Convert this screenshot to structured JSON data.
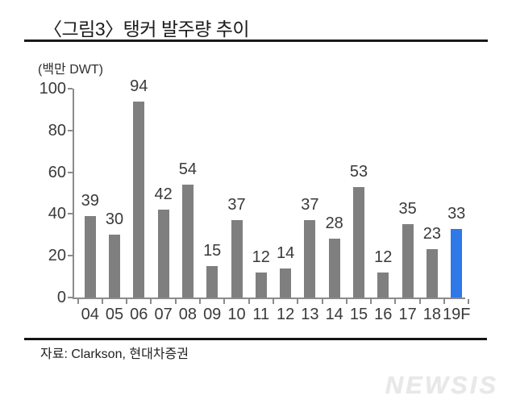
{
  "figure": {
    "title": "〈그림3〉탱커 발주량 추이",
    "unit_label": "(백만 DWT)",
    "source": "자료: Clarkson, 현대차증권",
    "watermark": "NEWSIS"
  },
  "chart_data": {
    "type": "bar",
    "title": "〈그림3〉탱커 발주량 추이",
    "ylabel": "(백만 DWT)",
    "xlabel": "",
    "categories": [
      "04",
      "05",
      "06",
      "07",
      "08",
      "09",
      "10",
      "11",
      "12",
      "13",
      "14",
      "15",
      "16",
      "17",
      "18",
      "19F"
    ],
    "values": [
      39,
      30,
      94,
      42,
      54,
      15,
      37,
      12,
      14,
      37,
      28,
      53,
      12,
      35,
      23,
      33
    ],
    "ylim": [
      0,
      100
    ],
    "yticks": [
      0,
      20,
      40,
      60,
      80,
      100
    ],
    "grid": false,
    "legend": false,
    "value_labels": true,
    "bar_color": "#7f7f7f",
    "highlight_index": 15,
    "highlight_color": "#2f78e8",
    "axis_color": "#8b8b8b",
    "label_color": "#3a3a3a"
  }
}
